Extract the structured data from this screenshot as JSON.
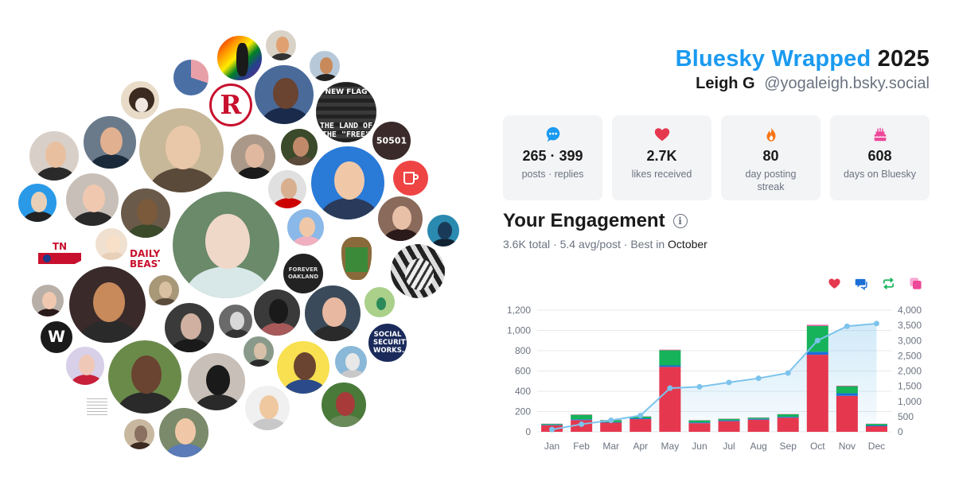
{
  "header": {
    "brand": "Bluesky Wrapped",
    "year": "2025",
    "display_name": "Leigh G",
    "handle": "@yogaleigh.bsky.social"
  },
  "stats": [
    {
      "icon": "speech-bubble-icon",
      "value": "265 · 399",
      "label": "posts · replies",
      "color": "#1a9af0"
    },
    {
      "icon": "heart-icon",
      "value": "2.7K",
      "label": "likes received",
      "color": "#e5384f"
    },
    {
      "icon": "flame-icon",
      "value": "80",
      "label": "day posting streak",
      "color": "#f97316"
    },
    {
      "icon": "cake-icon",
      "value": "608",
      "label": "days on Bluesky",
      "color": "#ec4899"
    }
  ],
  "engagement": {
    "title": "Your Engagement",
    "total": "3.6K total",
    "avg": "5.4 avg/post",
    "best_prefix": "Best in",
    "best_month": "October"
  },
  "legend": [
    {
      "icon": "heart-icon",
      "color": "#e5384f"
    },
    {
      "icon": "reply-icon",
      "color": "#1a6fd6"
    },
    {
      "icon": "repost-icon",
      "color": "#16b35a"
    },
    {
      "icon": "quote-icon",
      "color": "#ec4899"
    }
  ],
  "cluster": {
    "avatar_count": 49,
    "labels": {
      "tn_holler": "TN HOLLER",
      "daily_beast": "DAILY BEAST",
      "social_security": "SOCIAL SECURITY WORKS.",
      "land_of_free": "THE LAND OF THE \"FREE\"",
      "new_flag": "NEW FLAG",
      "number": "50501",
      "forever": "FOREVER OAKLAND"
    }
  },
  "chart_data": {
    "type": "bar",
    "categories": [
      "Jan",
      "Feb",
      "Mar",
      "Apr",
      "May",
      "Jun",
      "Jul",
      "Aug",
      "Sep",
      "Oct",
      "Nov",
      "Dec"
    ],
    "series": [
      {
        "name": "likes",
        "color": "#e5384f",
        "values": [
          65,
          115,
          90,
          125,
          640,
          85,
          105,
          120,
          140,
          760,
          355,
          55
        ]
      },
      {
        "name": "replies",
        "color": "#1a6fd6",
        "values": [
          5,
          8,
          5,
          8,
          15,
          8,
          8,
          8,
          8,
          30,
          25,
          8
        ]
      },
      {
        "name": "reposts",
        "color": "#16b35a",
        "values": [
          8,
          45,
          20,
          18,
          150,
          20,
          15,
          12,
          25,
          255,
          70,
          15
        ]
      },
      {
        "name": "quotes",
        "color": "#ec4899",
        "values": [
          2,
          3,
          2,
          2,
          5,
          2,
          2,
          2,
          2,
          10,
          5,
          2
        ]
      }
    ],
    "cumulative": {
      "color": "#7cc3ec",
      "values": [
        75,
        250,
        380,
        535,
        1435,
        1480,
        1625,
        1760,
        1935,
        3000,
        3470,
        3560
      ]
    },
    "y_left": {
      "min": 0,
      "max": 1200,
      "ticks": [
        "0",
        "200",
        "400",
        "600",
        "800",
        "1,000",
        "1,200"
      ]
    },
    "y_right": {
      "min": 0,
      "max": 4000,
      "ticks": [
        "0",
        "500",
        "1,000",
        "1,500",
        "2,000",
        "2,500",
        "3,000",
        "3,500",
        "4,000"
      ]
    },
    "grid": true
  }
}
